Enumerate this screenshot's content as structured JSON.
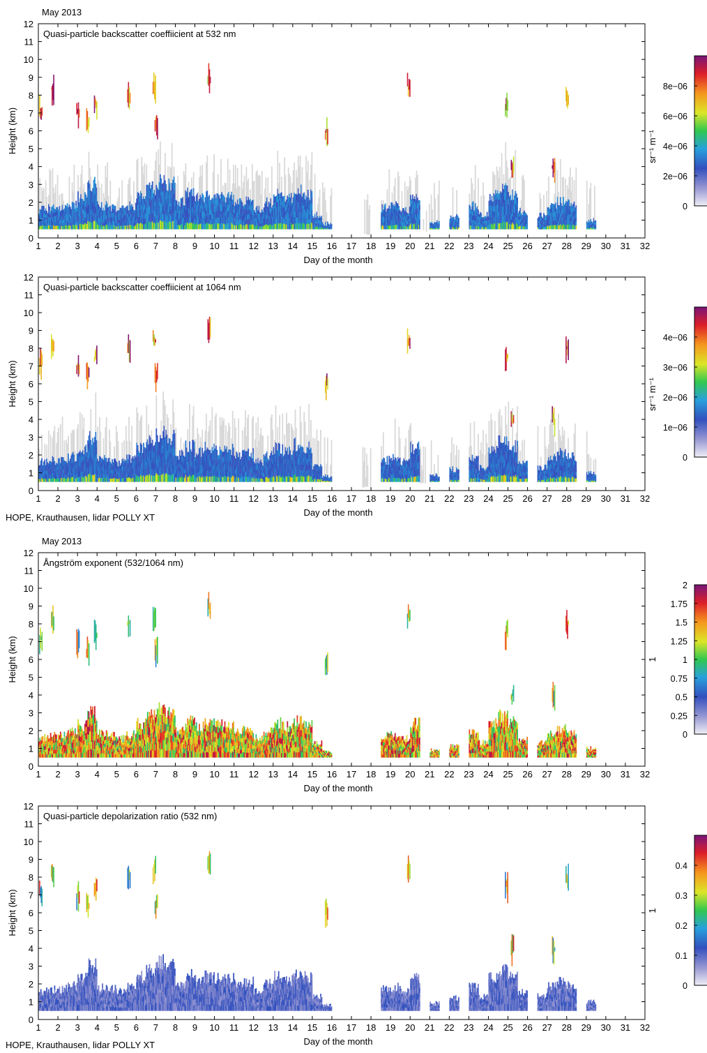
{
  "figure": {
    "header_top": "May 2013",
    "header_bottom": "May 2013",
    "footer_left": "HOPE, Krauthausen,  lidar POLLY XT"
  },
  "chart_data": [
    {
      "type": "heatmap",
      "title": "Quasi-particle backscatter coeffiicient at 532 nm",
      "xlabel": "Day of the month",
      "ylabel": "Height (km)",
      "xlim": [
        1,
        32
      ],
      "ylim": [
        0,
        12
      ],
      "xticks": [
        1,
        2,
        3,
        4,
        5,
        6,
        7,
        8,
        9,
        10,
        11,
        12,
        13,
        14,
        15,
        16,
        17,
        18,
        19,
        20,
        21,
        22,
        23,
        24,
        25,
        26,
        27,
        28,
        29,
        30,
        31,
        32
      ],
      "yticks": [
        0,
        1,
        2,
        3,
        4,
        5,
        6,
        7,
        8,
        9,
        10,
        11,
        12
      ],
      "colorbar": {
        "label": "sr⁻¹ m⁻¹",
        "min": 0,
        "max": 1e-05,
        "ticks": [
          0,
          2e-06,
          4e-06,
          6e-06,
          8e-06
        ],
        "tick_labels": [
          "0",
          "2e−06",
          "4e−06",
          "6e−06",
          "8e−06"
        ]
      },
      "series": [
        {
          "name": "boundary layer",
          "x": [
            1,
            1.5,
            2,
            2.5,
            3,
            3.5,
            4,
            4.5,
            5,
            5.5,
            6,
            6.5,
            7,
            7.5,
            8,
            8.5,
            9,
            9.5,
            10,
            10.5,
            11,
            11.5,
            12,
            12.5,
            13,
            13.5,
            14,
            14.5,
            15,
            15.5,
            16,
            16.5,
            17,
            17.5,
            18,
            18.5,
            19,
            19.5,
            20,
            20.5,
            21,
            21.5,
            22,
            22.5,
            23,
            23.5,
            24,
            24.5,
            25,
            25.5,
            26,
            26.5,
            27,
            27.5,
            28,
            28.5,
            29,
            29.5,
            30
          ],
          "y": [
            1.6,
            1.7,
            1.7,
            1.9,
            2.3,
            3.0,
            1.8,
            1.7,
            1.6,
            1.8,
            2.4,
            2.8,
            3.2,
            3.0,
            2.0,
            2.5,
            2.2,
            2.4,
            2.3,
            2.3,
            2.0,
            2.1,
            1.6,
            2.0,
            2.4,
            2.2,
            2.6,
            2.4,
            1.3,
            0.8,
            0,
            0,
            0,
            0.2,
            0,
            1.7,
            1.8,
            1.6,
            2.4,
            0.4,
            0.9,
            0,
            1.2,
            0,
            1.8,
            1.3,
            2.4,
            2.8,
            2.5,
            1.5,
            0,
            1.3,
            1.9,
            2.1,
            1.9,
            0,
            1,
            0,
            0
          ]
        },
        {
          "name": "elevated layers",
          "x": [
            1.1,
            1.7,
            3.0,
            3.5,
            3.9,
            5.6,
            6.9,
            7.0,
            9.7,
            15.7,
            19.9,
            24.9,
            25.2,
            27.3,
            28.0
          ],
          "y": [
            7.2,
            8.4,
            7.0,
            6.5,
            7.5,
            8.0,
            8.5,
            6.5,
            9.0,
            6.0,
            8.5,
            7.5,
            4.0,
            4.0,
            8.0
          ]
        }
      ]
    },
    {
      "type": "heatmap",
      "title": "Quasi-particle backscatter coeffiicient at 1064 nm",
      "xlabel": "Day of the month",
      "ylabel": "Height (km)",
      "xlim": [
        1,
        32
      ],
      "ylim": [
        0,
        12
      ],
      "xticks": [
        1,
        2,
        3,
        4,
        5,
        6,
        7,
        8,
        9,
        10,
        11,
        12,
        13,
        14,
        15,
        16,
        17,
        18,
        19,
        20,
        21,
        22,
        23,
        24,
        25,
        26,
        27,
        28,
        29,
        30,
        31,
        32
      ],
      "yticks": [
        0,
        1,
        2,
        3,
        4,
        5,
        6,
        7,
        8,
        9,
        10,
        11,
        12
      ],
      "colorbar": {
        "label": "sr⁻¹ m⁻¹",
        "min": 0,
        "max": 5e-06,
        "ticks": [
          0,
          1e-06,
          2e-06,
          3e-06,
          4e-06
        ],
        "tick_labels": [
          "0",
          "1e−06",
          "2e−06",
          "3e−06",
          "4e−06"
        ]
      },
      "series": [
        {
          "name": "boundary layer",
          "x": [
            1,
            1.5,
            2,
            2.5,
            3,
            3.5,
            4,
            4.5,
            5,
            5.5,
            6,
            6.5,
            7,
            7.5,
            8,
            8.5,
            9,
            9.5,
            10,
            10.5,
            11,
            11.5,
            12,
            12.5,
            13,
            13.5,
            14,
            14.5,
            15,
            15.5,
            16,
            16.5,
            17,
            17.5,
            18,
            18.5,
            19,
            19.5,
            20,
            20.5,
            21,
            21.5,
            22,
            22.5,
            23,
            23.5,
            24,
            24.5,
            25,
            25.5,
            26,
            26.5,
            27,
            27.5,
            28,
            28.5,
            29,
            29.5,
            30
          ],
          "y": [
            1.6,
            1.7,
            1.7,
            1.9,
            2.3,
            3.0,
            1.8,
            1.7,
            1.6,
            1.8,
            2.4,
            2.8,
            3.2,
            3.0,
            2.0,
            2.5,
            2.2,
            2.4,
            2.3,
            2.3,
            2.0,
            2.1,
            1.6,
            2.0,
            2.4,
            2.2,
            2.6,
            2.4,
            1.3,
            0.8,
            0,
            0,
            0,
            0.2,
            0,
            1.7,
            1.8,
            1.6,
            2.4,
            0.4,
            0.9,
            0,
            1.2,
            0,
            1.8,
            1.3,
            2.4,
            2.8,
            2.5,
            1.5,
            0,
            1.3,
            1.9,
            2.1,
            1.9,
            0,
            1,
            0,
            0
          ]
        },
        {
          "name": "elevated layers",
          "x": [
            1.1,
            1.7,
            3.0,
            3.5,
            3.9,
            5.6,
            6.9,
            7.0,
            9.7,
            15.7,
            19.9,
            24.9,
            25.2,
            27.3,
            28.0
          ],
          "y": [
            7.2,
            8.4,
            7.0,
            6.5,
            7.5,
            8.0,
            8.5,
            6.5,
            9.0,
            6.0,
            8.5,
            7.5,
            4.0,
            4.0,
            8.0
          ]
        }
      ]
    },
    {
      "type": "heatmap",
      "title": "Ångström exponent (532/1064 nm)",
      "xlabel": "Day of the month",
      "ylabel": "Height (km)",
      "xlim": [
        1,
        32
      ],
      "ylim": [
        0,
        12
      ],
      "xticks": [
        1,
        2,
        3,
        4,
        5,
        6,
        7,
        8,
        9,
        10,
        11,
        12,
        13,
        14,
        15,
        16,
        17,
        18,
        19,
        20,
        21,
        22,
        23,
        24,
        25,
        26,
        27,
        28,
        29,
        30,
        31,
        32
      ],
      "yticks": [
        0,
        1,
        2,
        3,
        4,
        5,
        6,
        7,
        8,
        9,
        10,
        11,
        12
      ],
      "colorbar": {
        "label": "1",
        "min": 0,
        "max": 2,
        "ticks": [
          0,
          0.25,
          0.5,
          0.75,
          1,
          1.25,
          1.5,
          1.75,
          2
        ],
        "tick_labels": [
          "0",
          "0.25",
          "0.5",
          "0.75",
          "1",
          "1.25",
          "1.5",
          "1.75",
          "2"
        ]
      },
      "series": [
        {
          "name": "boundary layer",
          "x": [
            1,
            1.5,
            2,
            2.5,
            3,
            3.5,
            4,
            4.5,
            5,
            5.5,
            6,
            6.5,
            7,
            7.5,
            8,
            8.5,
            9,
            9.5,
            10,
            10.5,
            11,
            11.5,
            12,
            12.5,
            13,
            13.5,
            14,
            14.5,
            15,
            15.5,
            16,
            16.5,
            17,
            17.5,
            18,
            18.5,
            19,
            19.5,
            20,
            20.5,
            21,
            21.5,
            22,
            22.5,
            23,
            23.5,
            24,
            24.5,
            25,
            25.5,
            26,
            26.5,
            27,
            27.5,
            28,
            28.5,
            29,
            29.5,
            30
          ],
          "y": [
            1.6,
            1.7,
            1.7,
            1.9,
            2.3,
            3.0,
            1.8,
            1.7,
            1.6,
            1.8,
            2.4,
            2.8,
            3.2,
            3.0,
            2.0,
            2.5,
            2.2,
            2.4,
            2.3,
            2.3,
            2.0,
            2.1,
            1.6,
            2.0,
            2.4,
            2.2,
            2.6,
            2.4,
            1.3,
            0.8,
            0,
            0,
            0,
            0.2,
            0,
            1.7,
            1.8,
            1.6,
            2.4,
            0.4,
            0.9,
            0,
            1.2,
            0,
            1.8,
            1.3,
            2.4,
            2.8,
            2.5,
            1.5,
            0,
            1.3,
            1.9,
            2.1,
            1.9,
            0,
            1,
            0,
            0
          ]
        },
        {
          "name": "elevated layers",
          "x": [
            1.1,
            1.7,
            3.0,
            3.5,
            3.9,
            5.6,
            6.9,
            7.0,
            9.7,
            15.7,
            19.9,
            24.9,
            25.2,
            27.3,
            28.0
          ],
          "y": [
            7.2,
            8.4,
            7.0,
            6.5,
            7.5,
            8.0,
            8.5,
            6.5,
            9.0,
            6.0,
            8.5,
            7.5,
            4.0,
            4.0,
            8.0
          ]
        }
      ]
    },
    {
      "type": "heatmap",
      "title": "Quasi-particle depolarization ratio (532 nm)",
      "xlabel": "Day of the month",
      "ylabel": "Height (km)",
      "xlim": [
        1,
        32
      ],
      "ylim": [
        0,
        12
      ],
      "xticks": [
        1,
        2,
        3,
        4,
        5,
        6,
        7,
        8,
        9,
        10,
        11,
        12,
        13,
        14,
        15,
        16,
        17,
        18,
        19,
        20,
        21,
        22,
        23,
        24,
        25,
        26,
        27,
        28,
        29,
        30,
        31,
        32
      ],
      "yticks": [
        0,
        1,
        2,
        3,
        4,
        5,
        6,
        7,
        8,
        9,
        10,
        11,
        12
      ],
      "colorbar": {
        "label": "1",
        "min": 0,
        "max": 0.5,
        "ticks": [
          0,
          0.1,
          0.2,
          0.3,
          0.4
        ],
        "tick_labels": [
          "0",
          "0.1",
          "0.2",
          "0.3",
          "0.4"
        ]
      },
      "series": [
        {
          "name": "boundary layer",
          "x": [
            1,
            1.5,
            2,
            2.5,
            3,
            3.5,
            4,
            4.5,
            5,
            5.5,
            6,
            6.5,
            7,
            7.5,
            8,
            8.5,
            9,
            9.5,
            10,
            10.5,
            11,
            11.5,
            12,
            12.5,
            13,
            13.5,
            14,
            14.5,
            15,
            15.5,
            16,
            16.5,
            17,
            17.5,
            18,
            18.5,
            19,
            19.5,
            20,
            20.5,
            21,
            21.5,
            22,
            22.5,
            23,
            23.5,
            24,
            24.5,
            25,
            25.5,
            26,
            26.5,
            27,
            27.5,
            28,
            28.5,
            29,
            29.5,
            30
          ],
          "y": [
            1.6,
            1.7,
            1.7,
            1.9,
            2.3,
            3.0,
            1.8,
            1.7,
            1.6,
            1.8,
            2.4,
            2.8,
            3.2,
            3.0,
            2.0,
            2.5,
            2.2,
            2.4,
            2.3,
            2.3,
            2.0,
            2.1,
            1.6,
            2.0,
            2.4,
            2.2,
            2.6,
            2.4,
            1.3,
            0.8,
            0,
            0,
            0,
            0.2,
            0,
            1.7,
            1.8,
            1.6,
            2.4,
            0.4,
            0.9,
            0,
            1.2,
            0,
            1.8,
            1.3,
            2.4,
            2.8,
            2.5,
            1.5,
            0,
            1.3,
            1.9,
            2.1,
            1.9,
            0,
            1,
            0,
            0
          ]
        },
        {
          "name": "elevated layers",
          "x": [
            1.1,
            1.7,
            3.0,
            3.5,
            3.9,
            5.6,
            6.9,
            7.0,
            9.7,
            15.7,
            19.9,
            24.9,
            25.2,
            27.3,
            28.0
          ],
          "y": [
            7.2,
            8.4,
            7.0,
            6.5,
            7.5,
            8.0,
            8.5,
            6.5,
            9.0,
            6.0,
            8.5,
            7.5,
            4.0,
            4.0,
            8.0
          ]
        }
      ]
    }
  ]
}
